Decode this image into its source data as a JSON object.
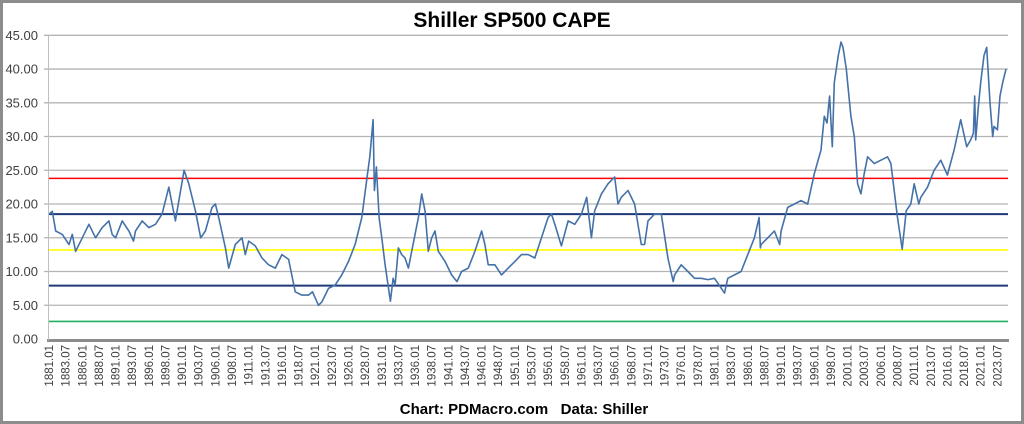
{
  "chart_data": {
    "type": "line",
    "title": "Shiller SP500 CAPE",
    "footer": "Chart: PDMacro.com   Data: Shiller",
    "ylim": [
      0,
      45
    ],
    "yticks": [
      "0.00",
      "5.00",
      "10.00",
      "15.00",
      "20.00",
      "25.00",
      "30.00",
      "35.00",
      "40.00",
      "45.00"
    ],
    "xlim": [
      1881.0,
      2025.1
    ],
    "xticks": [
      "1881.01",
      "1883.07",
      "1886.01",
      "1888.07",
      "1891.01",
      "1893.07",
      "1896.01",
      "1898.07",
      "1901.01",
      "1903.07",
      "1906.01",
      "1908.07",
      "1911.01",
      "1913.07",
      "1916.01",
      "1918.07",
      "1921.01",
      "1923.07",
      "1926.01",
      "1928.07",
      "1931.01",
      "1933.07",
      "1936.01",
      "1938.07",
      "1941.01",
      "1943.07",
      "1946.01",
      "1948.07",
      "1951.01",
      "1953.07",
      "1956.01",
      "1958.07",
      "1961.01",
      "1963.07",
      "1966.01",
      "1968.07",
      "1971.01",
      "1973.07",
      "1976.01",
      "1978.07",
      "1981.01",
      "1983.07",
      "1986.01",
      "1988.07",
      "1991.01",
      "1993.07",
      "1996.01",
      "1998.07",
      "2001.01",
      "2003.07",
      "2006.01",
      "2008.07",
      "2011.01",
      "2013.07",
      "2016.01",
      "2018.07",
      "2021.01",
      "2023.07"
    ],
    "grid": true,
    "legend": "none",
    "series_color": "#4472a8",
    "reference_lines": [
      {
        "value": 23.8,
        "color": "#ff0000"
      },
      {
        "value": 18.5,
        "color": "#1f3a78"
      },
      {
        "value": 13.2,
        "color": "#ffff00"
      },
      {
        "value": 7.9,
        "color": "#1f3a78"
      },
      {
        "value": 2.6,
        "color": "#22b060"
      }
    ],
    "series": [
      {
        "x": [
          1881.0,
          1881.5,
          1882,
          1883,
          1884,
          1884.5,
          1885,
          1886,
          1887,
          1888,
          1889,
          1890,
          1890.5,
          1891,
          1892,
          1893,
          1893.7,
          1894,
          1895,
          1896,
          1897,
          1898,
          1899,
          1899.5,
          1900,
          1901.3,
          1902,
          1903,
          1903.8,
          1904.5,
          1905.5,
          1906,
          1906.5,
          1907.5,
          1908,
          1909,
          1910,
          1910.5,
          1911,
          1912,
          1913,
          1914,
          1915,
          1916,
          1917,
          1918,
          1919,
          1920,
          1920.6,
          1921.5,
          1922,
          1923,
          1924,
          1925,
          1926,
          1927,
          1928,
          1928.8,
          1929.2,
          1929.7,
          1929.9,
          1930.2,
          1930.6,
          1931,
          1931.5,
          1932.3,
          1932.7,
          1933,
          1933.5,
          1934,
          1934.5,
          1935,
          1935.5,
          1936.5,
          1937,
          1937.5,
          1938,
          1938.5,
          1939,
          1939.5,
          1940.5,
          1941.5,
          1942.3,
          1943,
          1944,
          1945,
          1946,
          1946.5,
          1947,
          1948,
          1949,
          1950,
          1951,
          1952,
          1953,
          1954,
          1955,
          1956,
          1956.5,
          1957,
          1958,
          1959,
          1960,
          1961,
          1961.8,
          1962.5,
          1963,
          1964,
          1965,
          1966,
          1966.5,
          1967,
          1968,
          1969,
          1970,
          1970.5,
          1971,
          1972,
          1973,
          1974,
          1974.8,
          1975,
          1976,
          1977,
          1978,
          1979,
          1980,
          1981,
          1982.5,
          1983,
          1984,
          1985,
          1986,
          1987,
          1987.7,
          1987.9,
          1988,
          1989,
          1990,
          1990.8,
          1991,
          1992,
          1993,
          1994,
          1995,
          1996,
          1997,
          1997.5,
          1997.9,
          1998.3,
          1998.7,
          1999,
          1999.6,
          2000,
          2000.3,
          2000.8,
          2001.5,
          2002,
          2002.5,
          2003,
          2003.5,
          2004,
          2005,
          2006,
          2007,
          2007.5,
          2008,
          2008.5,
          2009.2,
          2009.8,
          2010.5,
          2011,
          2011.7,
          2012,
          2013,
          2014,
          2015,
          2016,
          2017,
          2018,
          2018.9,
          2019.5,
          2019.9,
          2020.1,
          2020.25,
          2020.6,
          2021,
          2021.5,
          2021.9,
          2022.4,
          2022.8,
          2023,
          2023.5,
          2023.9,
          2024.3,
          2024.8
        ],
        "y": [
          18.5,
          18.9,
          16,
          15.5,
          14,
          15.5,
          13,
          15,
          17,
          15,
          16.5,
          17.5,
          15.5,
          15,
          17.5,
          16,
          14.5,
          16,
          17.5,
          16.5,
          17,
          18.5,
          22.5,
          20,
          17.5,
          25,
          23,
          19,
          15,
          16,
          19.5,
          20,
          18,
          13.5,
          10.5,
          14,
          15,
          12.5,
          14.5,
          13.8,
          12,
          11,
          10.5,
          12.5,
          11.8,
          7,
          6.5,
          6.5,
          7,
          5,
          5.5,
          7.5,
          8,
          9.5,
          11.5,
          14,
          18,
          24,
          27,
          32.5,
          22,
          25.5,
          18,
          15,
          11,
          5.6,
          9,
          8,
          13.5,
          12.5,
          12,
          10.5,
          13,
          18,
          21.5,
          19,
          13,
          15,
          16,
          13,
          11.5,
          9.5,
          8.5,
          10,
          10.5,
          13,
          16,
          14,
          11,
          11,
          9.5,
          10.5,
          11.5,
          12.5,
          12.5,
          12,
          15,
          18,
          18.5,
          17,
          13.8,
          17.5,
          17,
          18.5,
          21,
          15,
          19,
          21.5,
          23,
          24,
          20,
          21,
          22,
          20,
          14,
          14,
          17.5,
          18.5,
          18.5,
          12,
          8.5,
          9.5,
          11,
          10,
          9,
          9,
          8.8,
          9,
          6.8,
          9,
          9.5,
          10,
          12.5,
          15,
          18,
          13.5,
          14,
          15,
          16,
          14,
          16,
          19.5,
          20,
          20.5,
          20,
          24.5,
          28,
          33,
          32,
          36,
          28.5,
          38,
          42,
          44,
          43.2,
          40,
          33,
          30,
          23,
          21.5,
          24.5,
          27,
          26,
          26.5,
          27,
          26,
          22,
          18,
          13.3,
          19,
          20,
          23,
          20,
          21,
          22.5,
          25,
          26.5,
          24.3,
          28,
          32.5,
          28.5,
          29.5,
          30.5,
          36,
          29.5,
          34,
          38,
          42,
          43.2,
          35,
          30,
          31.5,
          31,
          36,
          38,
          40
        ]
      }
    ]
  }
}
